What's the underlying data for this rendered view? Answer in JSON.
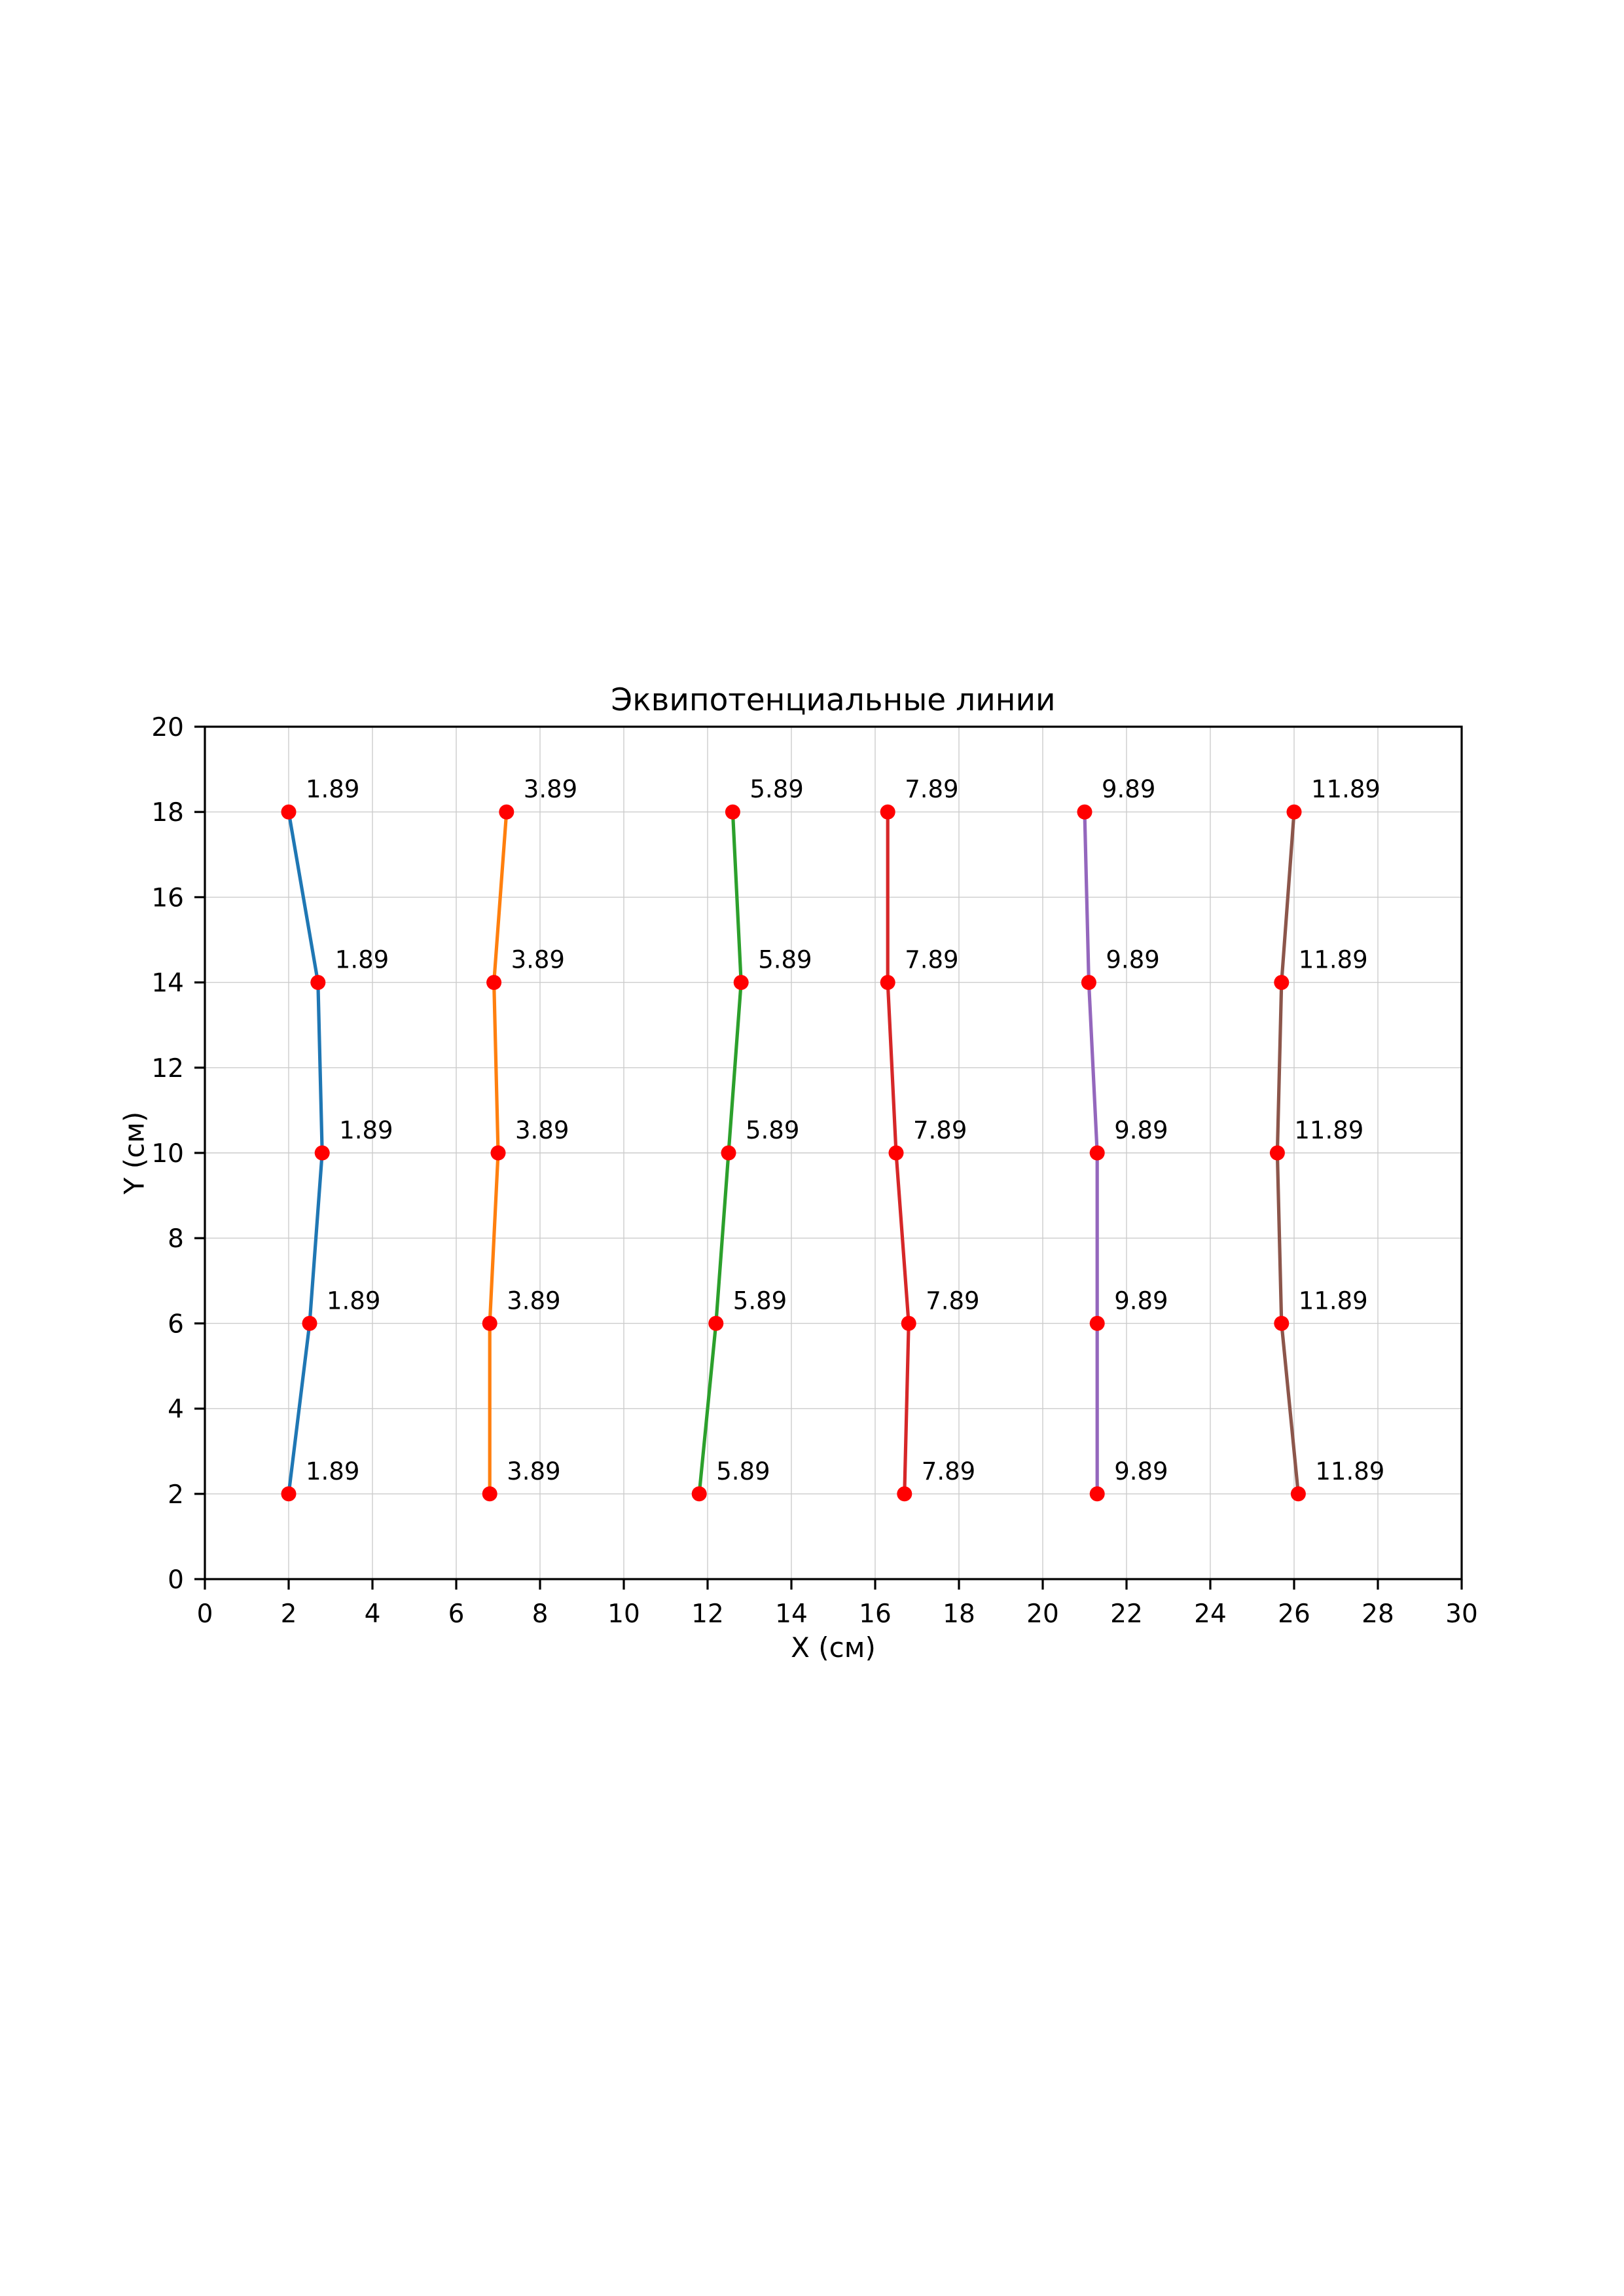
{
  "chart_data": {
    "type": "line",
    "title": "Эквипотенциальные линии",
    "xlabel": "X (см)",
    "ylabel": "Y (см)",
    "xlim": [
      0,
      30
    ],
    "ylim": [
      0,
      20
    ],
    "xticks": [
      0,
      2,
      4,
      6,
      8,
      10,
      12,
      14,
      16,
      18,
      20,
      22,
      24,
      26,
      28,
      30
    ],
    "yticks": [
      0,
      2,
      4,
      6,
      8,
      10,
      12,
      14,
      16,
      18,
      20
    ],
    "grid": true,
    "grid_color": "#cccccc",
    "spine_color": "#000000",
    "marker_color": "#ff0000",
    "annotation_color": "#000000",
    "legend": "none",
    "series": [
      {
        "name": "1.89",
        "color": "#1f77b4",
        "points": [
          [
            2.0,
            2
          ],
          [
            2.5,
            6
          ],
          [
            2.8,
            10
          ],
          [
            2.7,
            14
          ],
          [
            2.0,
            18
          ]
        ],
        "point_labels": [
          "1.89",
          "1.89",
          "1.89",
          "1.89",
          "1.89"
        ]
      },
      {
        "name": "3.89",
        "color": "#ff7f0e",
        "points": [
          [
            6.8,
            2
          ],
          [
            6.8,
            6
          ],
          [
            7.0,
            10
          ],
          [
            6.9,
            14
          ],
          [
            7.2,
            18
          ]
        ],
        "point_labels": [
          "3.89",
          "3.89",
          "3.89",
          "3.89",
          "3.89"
        ]
      },
      {
        "name": "5.89",
        "color": "#2ca02c",
        "points": [
          [
            11.8,
            2
          ],
          [
            12.2,
            6
          ],
          [
            12.5,
            10
          ],
          [
            12.8,
            14
          ],
          [
            12.6,
            18
          ]
        ],
        "point_labels": [
          "5.89",
          "5.89",
          "5.89",
          "5.89",
          "5.89"
        ]
      },
      {
        "name": "7.89",
        "color": "#d62728",
        "points": [
          [
            16.7,
            2
          ],
          [
            16.8,
            6
          ],
          [
            16.5,
            10
          ],
          [
            16.3,
            14
          ],
          [
            16.3,
            18
          ]
        ],
        "point_labels": [
          "7.89",
          "7.89",
          "7.89",
          "7.89",
          "7.89"
        ]
      },
      {
        "name": "9.89",
        "color": "#9467bd",
        "points": [
          [
            21.3,
            2
          ],
          [
            21.3,
            6
          ],
          [
            21.3,
            10
          ],
          [
            21.1,
            14
          ],
          [
            21.0,
            18
          ]
        ],
        "point_labels": [
          "9.89",
          "9.89",
          "9.89",
          "9.89",
          "9.89"
        ]
      },
      {
        "name": "11.89",
        "color": "#8c564b",
        "points": [
          [
            26.1,
            2
          ],
          [
            25.7,
            6
          ],
          [
            25.6,
            10
          ],
          [
            25.7,
            14
          ],
          [
            26.0,
            18
          ]
        ],
        "point_labels": [
          "11.89",
          "11.89",
          "11.89",
          "11.89",
          "11.89"
        ]
      }
    ]
  }
}
